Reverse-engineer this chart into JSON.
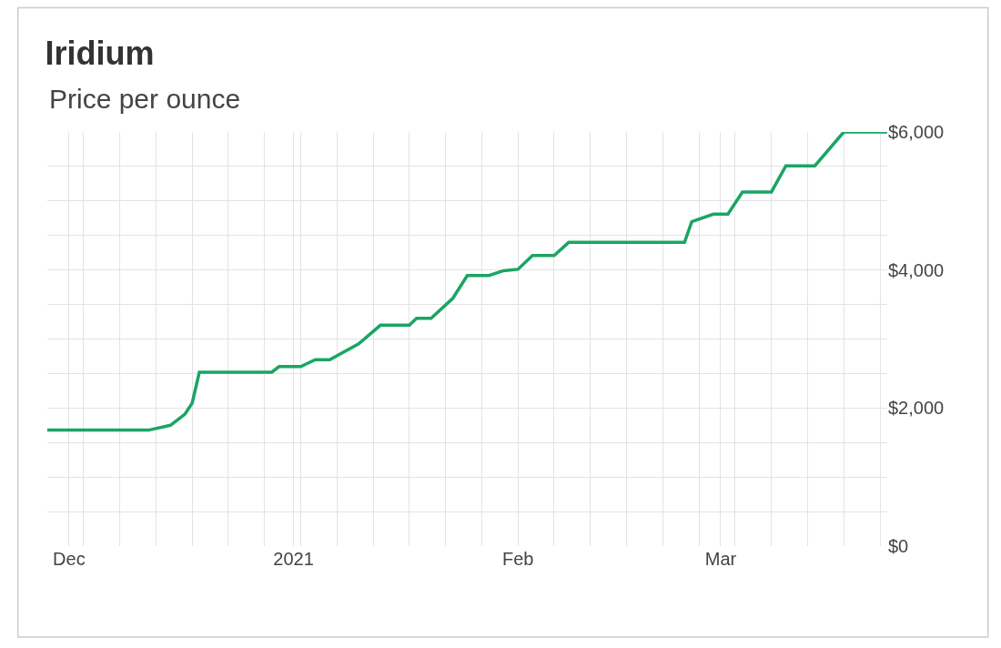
{
  "chart_data": {
    "type": "line",
    "title": "Iridium",
    "subtitle": "Price per ounce",
    "x": [
      "2020-11-28",
      "2020-12-12",
      "2020-12-15",
      "2020-12-17",
      "2020-12-18",
      "2020-12-19",
      "2020-12-29",
      "2020-12-30",
      "2021-01-02",
      "2021-01-04",
      "2021-01-06",
      "2021-01-10",
      "2021-01-13",
      "2021-01-17",
      "2021-01-18",
      "2021-01-20",
      "2021-01-23",
      "2021-01-25",
      "2021-01-28",
      "2021-01-30",
      "2021-02-01",
      "2021-02-03",
      "2021-02-06",
      "2021-02-08",
      "2021-02-24",
      "2021-02-25",
      "2021-02-28",
      "2021-03-02",
      "2021-03-04",
      "2021-03-08",
      "2021-03-10",
      "2021-03-14",
      "2021-03-18",
      "2021-03-24"
    ],
    "series": [
      {
        "color": "#1aa563",
        "values": [
          1680,
          1680,
          1750,
          1910,
          2070,
          2520,
          2520,
          2600,
          2600,
          2700,
          2700,
          2930,
          3200,
          3200,
          3300,
          3300,
          3590,
          3920,
          3920,
          3990,
          4010,
          4210,
          4210,
          4400,
          4400,
          4700,
          4810,
          4810,
          5130,
          5130,
          5510,
          5510,
          6000,
          6000
        ]
      }
    ],
    "xlim": [
      "2020-11-28",
      "2021-03-24"
    ],
    "xticks": [
      {
        "value": "2020-12-01",
        "label": "Dec"
      },
      {
        "value": "2021-01-01",
        "label": "2021"
      },
      {
        "value": "2021-02-01",
        "label": "Feb"
      },
      {
        "value": "2021-03-01",
        "label": "Mar"
      }
    ],
    "ylim": [
      0,
      6000
    ],
    "yticks": [
      {
        "value": 0,
        "label": "$0"
      },
      {
        "value": 2000,
        "label": "$2,000"
      },
      {
        "value": 4000,
        "label": "$4,000"
      },
      {
        "value": 6000,
        "label": "$6,000"
      }
    ],
    "grid": true,
    "marker": "none",
    "line_style": "solid"
  }
}
